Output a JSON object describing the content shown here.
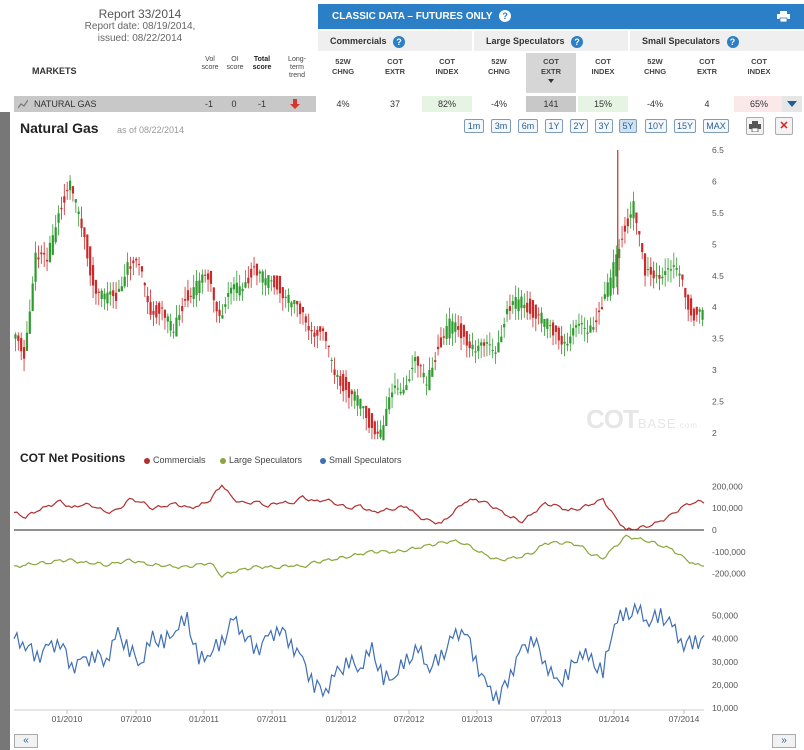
{
  "report": {
    "title": "Report 33/2014",
    "date": "Report date: 08/19/2014,",
    "issued": "issued: 08/22/2014"
  },
  "header": {
    "markets_label": "MARKETS",
    "vol_score_l1": "Vol",
    "vol_score_l2": "score",
    "oi_score_l1": "OI",
    "oi_score_l2": "score",
    "total_score_l1": "Total",
    "total_score_l2": "score",
    "trend_l1": "Long-",
    "trend_l2": "term",
    "trend_l3": "trend",
    "classic_title": "CLASSIC DATA – FUTURES ONLY",
    "groups": [
      "Commercials",
      "Large Speculators",
      "Small Speculators"
    ],
    "cols": [
      [
        "52W",
        "CHNG"
      ],
      [
        "COT",
        "EXTR"
      ],
      [
        "COT",
        "INDEX"
      ],
      [
        "52W",
        "CHNG"
      ],
      [
        "COT",
        "EXTR"
      ],
      [
        "COT",
        "INDEX"
      ],
      [
        "52W",
        "CHNG"
      ],
      [
        "COT",
        "EXTR"
      ],
      [
        "COT",
        "INDEX"
      ]
    ],
    "help_icon": "?"
  },
  "market_row": {
    "name": "NATURAL GAS",
    "vol_score": "-1",
    "oi_score": "0",
    "total_score": "-1",
    "trend": "down",
    "values": [
      "4%",
      "37",
      "82%",
      "-4%",
      "141",
      "15%",
      "-4%",
      "4",
      "65%"
    ]
  },
  "chart_header": {
    "title": "Natural Gas",
    "asof": "as of 08/22/2014",
    "ranges": [
      "1m",
      "3m",
      "6m",
      "1Y",
      "2Y",
      "3Y",
      "5Y",
      "10Y",
      "15Y",
      "MAX"
    ],
    "active_range": "5Y",
    "close_glyph": "✕"
  },
  "cot_section": {
    "title": "COT Net Positions",
    "legend": [
      "Commercials",
      "Large Speculators",
      "Small Speculators"
    ]
  },
  "watermark": {
    "main": "COT",
    "sub": "BASE",
    "suffix": ".com"
  },
  "nav": {
    "prev": "«",
    "next": "»"
  },
  "colors": {
    "up": "#2e9b2e",
    "down": "#cc2a2a",
    "commercials": "#b03030",
    "large_spec": "#8aa63a",
    "small_spec": "#3f6fb5"
  },
  "chart_data": [
    {
      "type": "candlestick",
      "title": "Natural Gas",
      "ylim": [
        2.0,
        6.5
      ],
      "yticks": [
        2,
        2.5,
        3,
        3.5,
        4,
        4.5,
        5,
        5.5,
        6,
        6.5
      ],
      "x_dates": [
        "09/2009",
        "10/2009",
        "11/2009",
        "12/2009",
        "01/2010",
        "02/2010",
        "03/2010",
        "04/2010",
        "05/2010",
        "06/2010",
        "07/2010",
        "08/2010",
        "09/2010",
        "10/2010",
        "11/2010",
        "12/2010",
        "01/2011",
        "02/2011",
        "03/2011",
        "04/2011",
        "05/2011",
        "06/2011",
        "07/2011",
        "08/2011",
        "09/2011",
        "10/2011",
        "11/2011",
        "12/2011",
        "01/2012",
        "02/2012",
        "03/2012",
        "04/2012",
        "05/2012",
        "06/2012",
        "07/2012",
        "08/2012",
        "09/2012",
        "10/2012",
        "11/2012",
        "12/2012",
        "01/2013",
        "02/2013",
        "03/2013",
        "04/2013",
        "05/2013",
        "06/2013",
        "07/2013",
        "08/2013",
        "09/2013",
        "10/2013",
        "11/2013",
        "12/2013",
        "01/2014",
        "02/2014",
        "03/2014",
        "04/2014",
        "05/2014",
        "06/2014",
        "07/2014",
        "08/2014"
      ],
      "close": [
        3.3,
        4.8,
        4.7,
        5.6,
        5.9,
        5.3,
        4.4,
        4.1,
        4.2,
        4.7,
        4.6,
        4.0,
        3.9,
        3.6,
        4.2,
        4.3,
        4.5,
        3.9,
        4.2,
        4.4,
        4.6,
        4.4,
        4.4,
        4.1,
        3.9,
        3.7,
        3.5,
        3.0,
        2.7,
        2.5,
        2.2,
        2.0,
        2.6,
        2.8,
        3.1,
        2.8,
        3.4,
        3.7,
        3.6,
        3.4,
        3.3,
        3.4,
        3.9,
        4.1,
        4.0,
        3.8,
        3.6,
        3.5,
        3.6,
        3.7,
        3.9,
        4.4,
        5.2,
        5.6,
        4.5,
        4.6,
        4.5,
        4.6,
        3.9,
        3.85
      ],
      "high": [
        3.6,
        5.5,
        5.2,
        6.0,
        6.1,
        5.6,
        4.8,
        4.3,
        4.4,
        5.0,
        4.8,
        4.4,
        4.1,
        3.9,
        4.4,
        4.6,
        4.6,
        4.1,
        4.4,
        4.6,
        4.8,
        4.6,
        4.5,
        4.3,
        4.1,
        3.9,
        3.7,
        3.2,
        3.0,
        2.7,
        2.4,
        2.2,
        2.8,
        3.0,
        3.3,
        3.1,
        3.6,
        4.0,
        3.9,
        3.6,
        3.5,
        3.6,
        4.1,
        4.4,
        4.3,
        4.0,
        3.8,
        3.7,
        3.8,
        3.9,
        4.2,
        4.6,
        6.5,
        6.1,
        4.8,
        4.8,
        4.8,
        4.9,
        4.2,
        4.0
      ],
      "low": [
        2.4,
        4.0,
        4.3,
        5.0,
        5.2,
        4.7,
        4.0,
        3.9,
        3.9,
        4.3,
        4.2,
        3.8,
        3.7,
        3.5,
        3.7,
        4.0,
        4.1,
        3.7,
        3.9,
        4.1,
        4.3,
        4.1,
        4.2,
        3.9,
        3.6,
        3.4,
        3.0,
        2.6,
        2.4,
        2.2,
        2.0,
        1.9,
        2.3,
        2.6,
        2.8,
        2.6,
        3.0,
        3.4,
        3.2,
        3.2,
        3.1,
        3.1,
        3.5,
        3.8,
        3.8,
        3.5,
        3.3,
        3.2,
        3.3,
        3.4,
        3.6,
        4.1,
        4.2,
        4.4,
        4.2,
        4.3,
        4.2,
        4.2,
        3.7,
        3.7
      ]
    },
    {
      "type": "line",
      "title": "COT Net Positions",
      "series": [
        {
          "name": "Commercials",
          "values": [
            80000,
            60000,
            90000,
            110000,
            130000,
            100000,
            120000,
            110000,
            80000,
            90000,
            140000,
            130000,
            100000,
            110000,
            120000,
            100000,
            110000,
            140000,
            210000,
            140000,
            120000,
            130000,
            110000,
            130000,
            120000,
            150000,
            130000,
            140000,
            120000,
            100000,
            110000,
            80000,
            90000,
            100000,
            110000,
            60000,
            40000,
            30000,
            80000,
            130000,
            140000,
            120000,
            90000,
            60000,
            40000,
            80000,
            120000,
            110000,
            90000,
            100000,
            120000,
            140000,
            60000,
            0,
            10000,
            20000,
            40000,
            70000,
            110000,
            130000
          ]
        },
        {
          "name": "Large Speculators",
          "values": [
            -170000,
            -160000,
            -150000,
            -150000,
            -140000,
            -140000,
            -150000,
            -150000,
            -160000,
            -150000,
            -140000,
            -150000,
            -160000,
            -160000,
            -170000,
            -170000,
            -160000,
            -150000,
            -210000,
            -190000,
            -180000,
            -170000,
            -170000,
            -170000,
            -160000,
            -170000,
            -150000,
            -140000,
            -130000,
            -120000,
            -110000,
            -100000,
            -100000,
            -100000,
            -90000,
            -80000,
            -70000,
            -60000,
            -50000,
            -60000,
            -90000,
            -120000,
            -140000,
            -130000,
            -120000,
            -100000,
            -60000,
            -60000,
            -60000,
            -70000,
            -110000,
            -130000,
            -80000,
            -30000,
            -40000,
            -50000,
            -70000,
            -90000,
            -130000,
            -160000
          ]
        }
      ],
      "ylim": [
        -220000,
        220000
      ],
      "yticks": [
        -200000,
        -100000,
        0,
        100000,
        200000
      ]
    },
    {
      "type": "line",
      "series": [
        {
          "name": "Small Speculators",
          "values": [
            40000,
            38000,
            32000,
            36000,
            39000,
            28000,
            30000,
            33000,
            31000,
            42000,
            35000,
            30000,
            40000,
            38000,
            45000,
            48000,
            30000,
            35000,
            38000,
            48000,
            42000,
            35000,
            40000,
            45000,
            38000,
            30000,
            20000,
            18000,
            25000,
            30000,
            28000,
            35000,
            22000,
            25000,
            30000,
            35000,
            28000,
            32000,
            40000,
            45000,
            30000,
            18000,
            15000,
            25000,
            35000,
            40000,
            30000,
            20000,
            25000,
            35000,
            30000,
            25000,
            48000,
            50000,
            52000,
            48000,
            50000,
            45000,
            38000,
            39000
          ]
        }
      ],
      "ylim": [
        10000,
        55000
      ],
      "yticks": [
        10000,
        20000,
        30000,
        40000,
        50000
      ]
    }
  ],
  "x_axis": {
    "tick_labels": [
      "01/2010",
      "07/2010",
      "01/2011",
      "07/2011",
      "01/2012",
      "07/2012",
      "01/2013",
      "07/2013",
      "01/2014",
      "07/2014"
    ]
  }
}
